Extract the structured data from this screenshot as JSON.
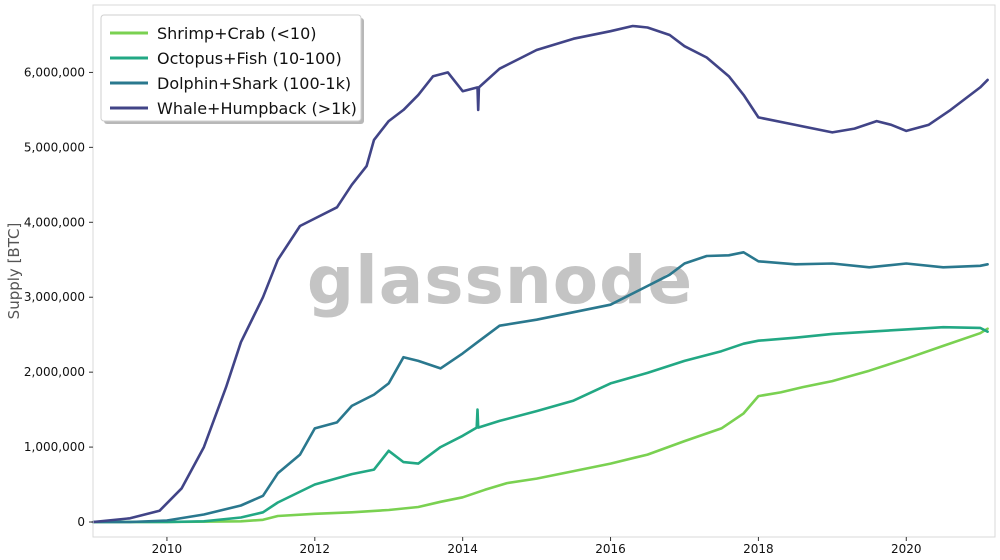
{
  "chart_data": {
    "type": "line",
    "title": "",
    "xlabel": "",
    "ylabel": "Supply [BTC]",
    "watermark": "glassnode",
    "xlim": [
      2009.0,
      2021.2
    ],
    "ylim": [
      -200000,
      6900000
    ],
    "x_ticks": [
      2010,
      2012,
      2014,
      2016,
      2018,
      2020
    ],
    "x_tick_labels": [
      "2010",
      "2012",
      "2014",
      "2016",
      "2018",
      "2020"
    ],
    "y_ticks": [
      0,
      1000000,
      2000000,
      3000000,
      4000000,
      5000000,
      6000000
    ],
    "y_tick_labels": [
      "0",
      "1,000,000",
      "2,000,000",
      "3,000,000",
      "4,000,000",
      "5,000,000",
      "6,000,000"
    ],
    "grid": false,
    "legend_position": "top-left",
    "series": [
      {
        "name": "Shrimp+Crab (<10)",
        "color": "#7ad151",
        "x": [
          2009.0,
          2010.0,
          2011.0,
          2011.3,
          2011.5,
          2012.0,
          2012.5,
          2013.0,
          2013.4,
          2013.7,
          2014.0,
          2014.3,
          2014.6,
          2015.0,
          2015.5,
          2016.0,
          2016.5,
          2017.0,
          2017.5,
          2017.8,
          2018.0,
          2018.3,
          2018.6,
          2019.0,
          2019.5,
          2020.0,
          2020.5,
          2021.0,
          2021.1
        ],
        "y": [
          0,
          0,
          10000,
          30000,
          80000,
          110000,
          130000,
          160000,
          200000,
          270000,
          330000,
          430000,
          520000,
          580000,
          680000,
          780000,
          900000,
          1080000,
          1250000,
          1450000,
          1680000,
          1730000,
          1800000,
          1880000,
          2020000,
          2180000,
          2350000,
          2520000,
          2580000
        ]
      },
      {
        "name": "Octopus+Fish (10-100)",
        "color": "#22a884",
        "x": [
          2009.0,
          2010.0,
          2010.5,
          2011.0,
          2011.3,
          2011.5,
          2012.0,
          2012.5,
          2012.8,
          2013.0,
          2013.2,
          2013.4,
          2013.7,
          2014.0,
          2014.19,
          2014.2,
          2014.21,
          2014.5,
          2015.0,
          2015.5,
          2016.0,
          2016.5,
          2017.0,
          2017.5,
          2017.8,
          2018.0,
          2018.5,
          2019.0,
          2019.5,
          2020.0,
          2020.5,
          2021.0,
          2021.1
        ],
        "y": [
          0,
          0,
          10000,
          60000,
          130000,
          260000,
          500000,
          640000,
          700000,
          950000,
          800000,
          780000,
          1000000,
          1150000,
          1260000,
          1500000,
          1260000,
          1350000,
          1480000,
          1620000,
          1850000,
          1990000,
          2150000,
          2280000,
          2380000,
          2420000,
          2460000,
          2510000,
          2540000,
          2570000,
          2600000,
          2590000,
          2540000
        ]
      },
      {
        "name": "Dolphin+Shark (100-1k)",
        "color": "#2a788e",
        "x": [
          2009.0,
          2009.5,
          2010.0,
          2010.5,
          2011.0,
          2011.3,
          2011.5,
          2011.8,
          2012.0,
          2012.3,
          2012.5,
          2012.8,
          2013.0,
          2013.2,
          2013.4,
          2013.7,
          2014.0,
          2014.2,
          2014.5,
          2015.0,
          2015.5,
          2016.0,
          2016.5,
          2016.8,
          2017.0,
          2017.3,
          2017.6,
          2017.8,
          2018.0,
          2018.5,
          2019.0,
          2019.5,
          2020.0,
          2020.5,
          2021.0,
          2021.1
        ],
        "y": [
          0,
          0,
          20000,
          100000,
          220000,
          350000,
          650000,
          900000,
          1250000,
          1330000,
          1550000,
          1700000,
          1850000,
          2200000,
          2150000,
          2050000,
          2250000,
          2400000,
          2620000,
          2700000,
          2800000,
          2900000,
          3150000,
          3300000,
          3450000,
          3550000,
          3560000,
          3600000,
          3480000,
          3440000,
          3450000,
          3400000,
          3450000,
          3400000,
          3420000,
          3440000
        ]
      },
      {
        "name": "Whale+Humpback (>1k)",
        "color": "#414487",
        "x": [
          2009.0,
          2009.5,
          2009.9,
          2010.2,
          2010.5,
          2010.8,
          2011.0,
          2011.3,
          2011.5,
          2011.8,
          2012.0,
          2012.3,
          2012.5,
          2012.7,
          2012.8,
          2013.0,
          2013.2,
          2013.4,
          2013.6,
          2013.8,
          2014.0,
          2014.2,
          2014.21,
          2014.22,
          2014.5,
          2014.8,
          2015.0,
          2015.5,
          2016.0,
          2016.3,
          2016.5,
          2016.8,
          2017.0,
          2017.3,
          2017.6,
          2017.8,
          2018.0,
          2018.5,
          2019.0,
          2019.3,
          2019.6,
          2019.8,
          2020.0,
          2020.3,
          2020.6,
          2021.0,
          2021.1
        ],
        "y": [
          0,
          50000,
          150000,
          450000,
          1000000,
          1800000,
          2400000,
          3000000,
          3500000,
          3950000,
          4050000,
          4200000,
          4500000,
          4750000,
          5100000,
          5350000,
          5500000,
          5700000,
          5950000,
          6000000,
          5750000,
          5800000,
          5500000,
          5800000,
          6050000,
          6200000,
          6300000,
          6450000,
          6550000,
          6620000,
          6600000,
          6500000,
          6350000,
          6200000,
          5950000,
          5700000,
          5400000,
          5300000,
          5200000,
          5250000,
          5350000,
          5300000,
          5220000,
          5300000,
          5500000,
          5800000,
          5900000
        ]
      }
    ]
  }
}
